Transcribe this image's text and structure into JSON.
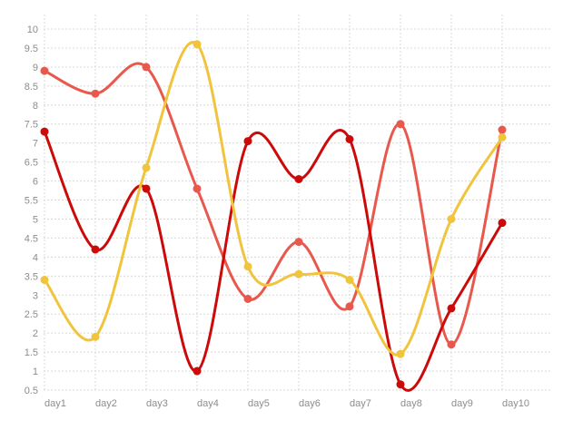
{
  "chart_data": {
    "type": "line",
    "smooth": true,
    "categories": [
      "day1",
      "day2",
      "day3",
      "day4",
      "day5",
      "day6",
      "day7",
      "day8",
      "day9",
      "day10"
    ],
    "ylim": [
      0.5,
      10
    ],
    "yticks": [
      "0.5",
      "1",
      "1.5",
      "2",
      "2.5",
      "3",
      "3.5",
      "4",
      "4.5",
      "5",
      "5.5",
      "6",
      "6.5",
      "7",
      "7.5",
      "8",
      "8.5",
      "9",
      "9.5",
      "10"
    ],
    "grid": true,
    "legend": "none",
    "title": "",
    "xlabel": "",
    "ylabel": "",
    "series": [
      {
        "color": "#e8584c",
        "values": [
          8.9,
          8.3,
          9.0,
          5.8,
          2.9,
          4.4,
          2.7,
          7.5,
          1.7,
          7.35
        ]
      },
      {
        "color": "#cc0a0a",
        "values": [
          7.3,
          4.2,
          5.8,
          1.0,
          7.05,
          6.05,
          7.1,
          0.65,
          2.65,
          4.9
        ]
      },
      {
        "color": "#f1c43d",
        "values": [
          3.4,
          1.9,
          6.35,
          9.6,
          3.75,
          3.55,
          3.4,
          1.45,
          5.0,
          7.15
        ]
      }
    ]
  }
}
